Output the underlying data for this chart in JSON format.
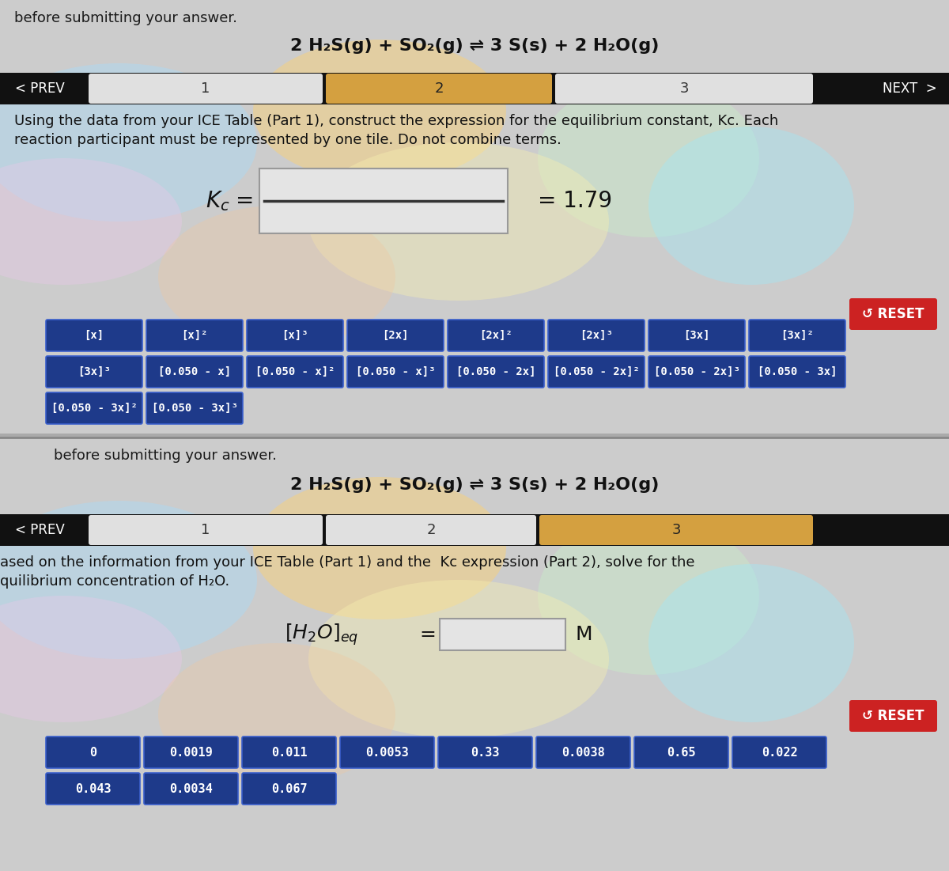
{
  "bg_color": "#aaaaaa",
  "equation": "2 H₂S(g) + SO₂(g) ⇌ 3 S(s) + 2 H₂O(g)",
  "panel1_instruction_line1": "Using the data from your ICE Table (Part 1), construct the expression for the equilibrium constant, Kc. Each",
  "panel1_instruction_line2": "reaction participant must be represented by one tile. Do not combine terms.",
  "kc_value": "= 1.79",
  "reset_color": "#cc2222",
  "reset_label": "↺ RESET",
  "tile_color": "#1e3a8a",
  "tile_border_color": "#3a5fcc",
  "tile_text_color": "#ffffff",
  "tiles_row1": [
    "[x]",
    "[x]²",
    "[x]³",
    "[2x]",
    "[2x]²",
    "[2x]³",
    "[3x]",
    "[3x]²"
  ],
  "tiles_row2": [
    "[3x]³",
    "[0.050 - x]",
    "[0.050 - x]²",
    "[0.050 - x]³",
    "[0.050 - 2x]",
    "[0.050 - 2x]²",
    "[0.050 - 2x]³",
    "[0.050 - 3x]"
  ],
  "tiles_row3": [
    "[0.050 - 3x]²",
    "[0.050 - 3x]³"
  ],
  "panel2_instruction_line1": "ased on the information from your ICE Table (Part 1) and the  Kc expression (Part 2), solve for the",
  "panel2_instruction_line2": "quilibrium concentration of H₂O.",
  "tiles2_row1": [
    "0",
    "0.0019",
    "0.011",
    "0.0053",
    "0.33",
    "0.0038",
    "0.65",
    "0.022"
  ],
  "tiles2_row2": [
    "0.043",
    "0.0034",
    "0.067"
  ],
  "nav1_active": 2,
  "nav2_active": 3,
  "rainbow_blobs_p1": [
    [
      "#b0d8f0",
      150,
      180,
      350,
      200,
      0.55
    ],
    [
      "#f5d080",
      480,
      140,
      320,
      180,
      0.55
    ],
    [
      "#c8ecc8",
      820,
      200,
      280,
      200,
      0.45
    ],
    [
      "#e8c8e8",
      80,
      280,
      300,
      160,
      0.4
    ],
    [
      "#f8f0b0",
      580,
      280,
      380,
      200,
      0.4
    ],
    [
      "#a0e8f8",
      950,
      260,
      260,
      200,
      0.4
    ],
    [
      "#f0c8a0",
      350,
      350,
      300,
      180,
      0.35
    ]
  ],
  "rainbow_blobs_p2": [
    [
      "#b0d8f0",
      150,
      180,
      350,
      200,
      0.55
    ],
    [
      "#f5d080",
      480,
      140,
      320,
      180,
      0.55
    ],
    [
      "#c8ecc8",
      820,
      200,
      280,
      200,
      0.45
    ],
    [
      "#e8c8e8",
      80,
      280,
      300,
      160,
      0.4
    ],
    [
      "#f8f0b0",
      580,
      280,
      380,
      200,
      0.4
    ],
    [
      "#a0e8f8",
      950,
      260,
      260,
      200,
      0.4
    ],
    [
      "#f0c8a0",
      350,
      350,
      300,
      180,
      0.35
    ]
  ]
}
